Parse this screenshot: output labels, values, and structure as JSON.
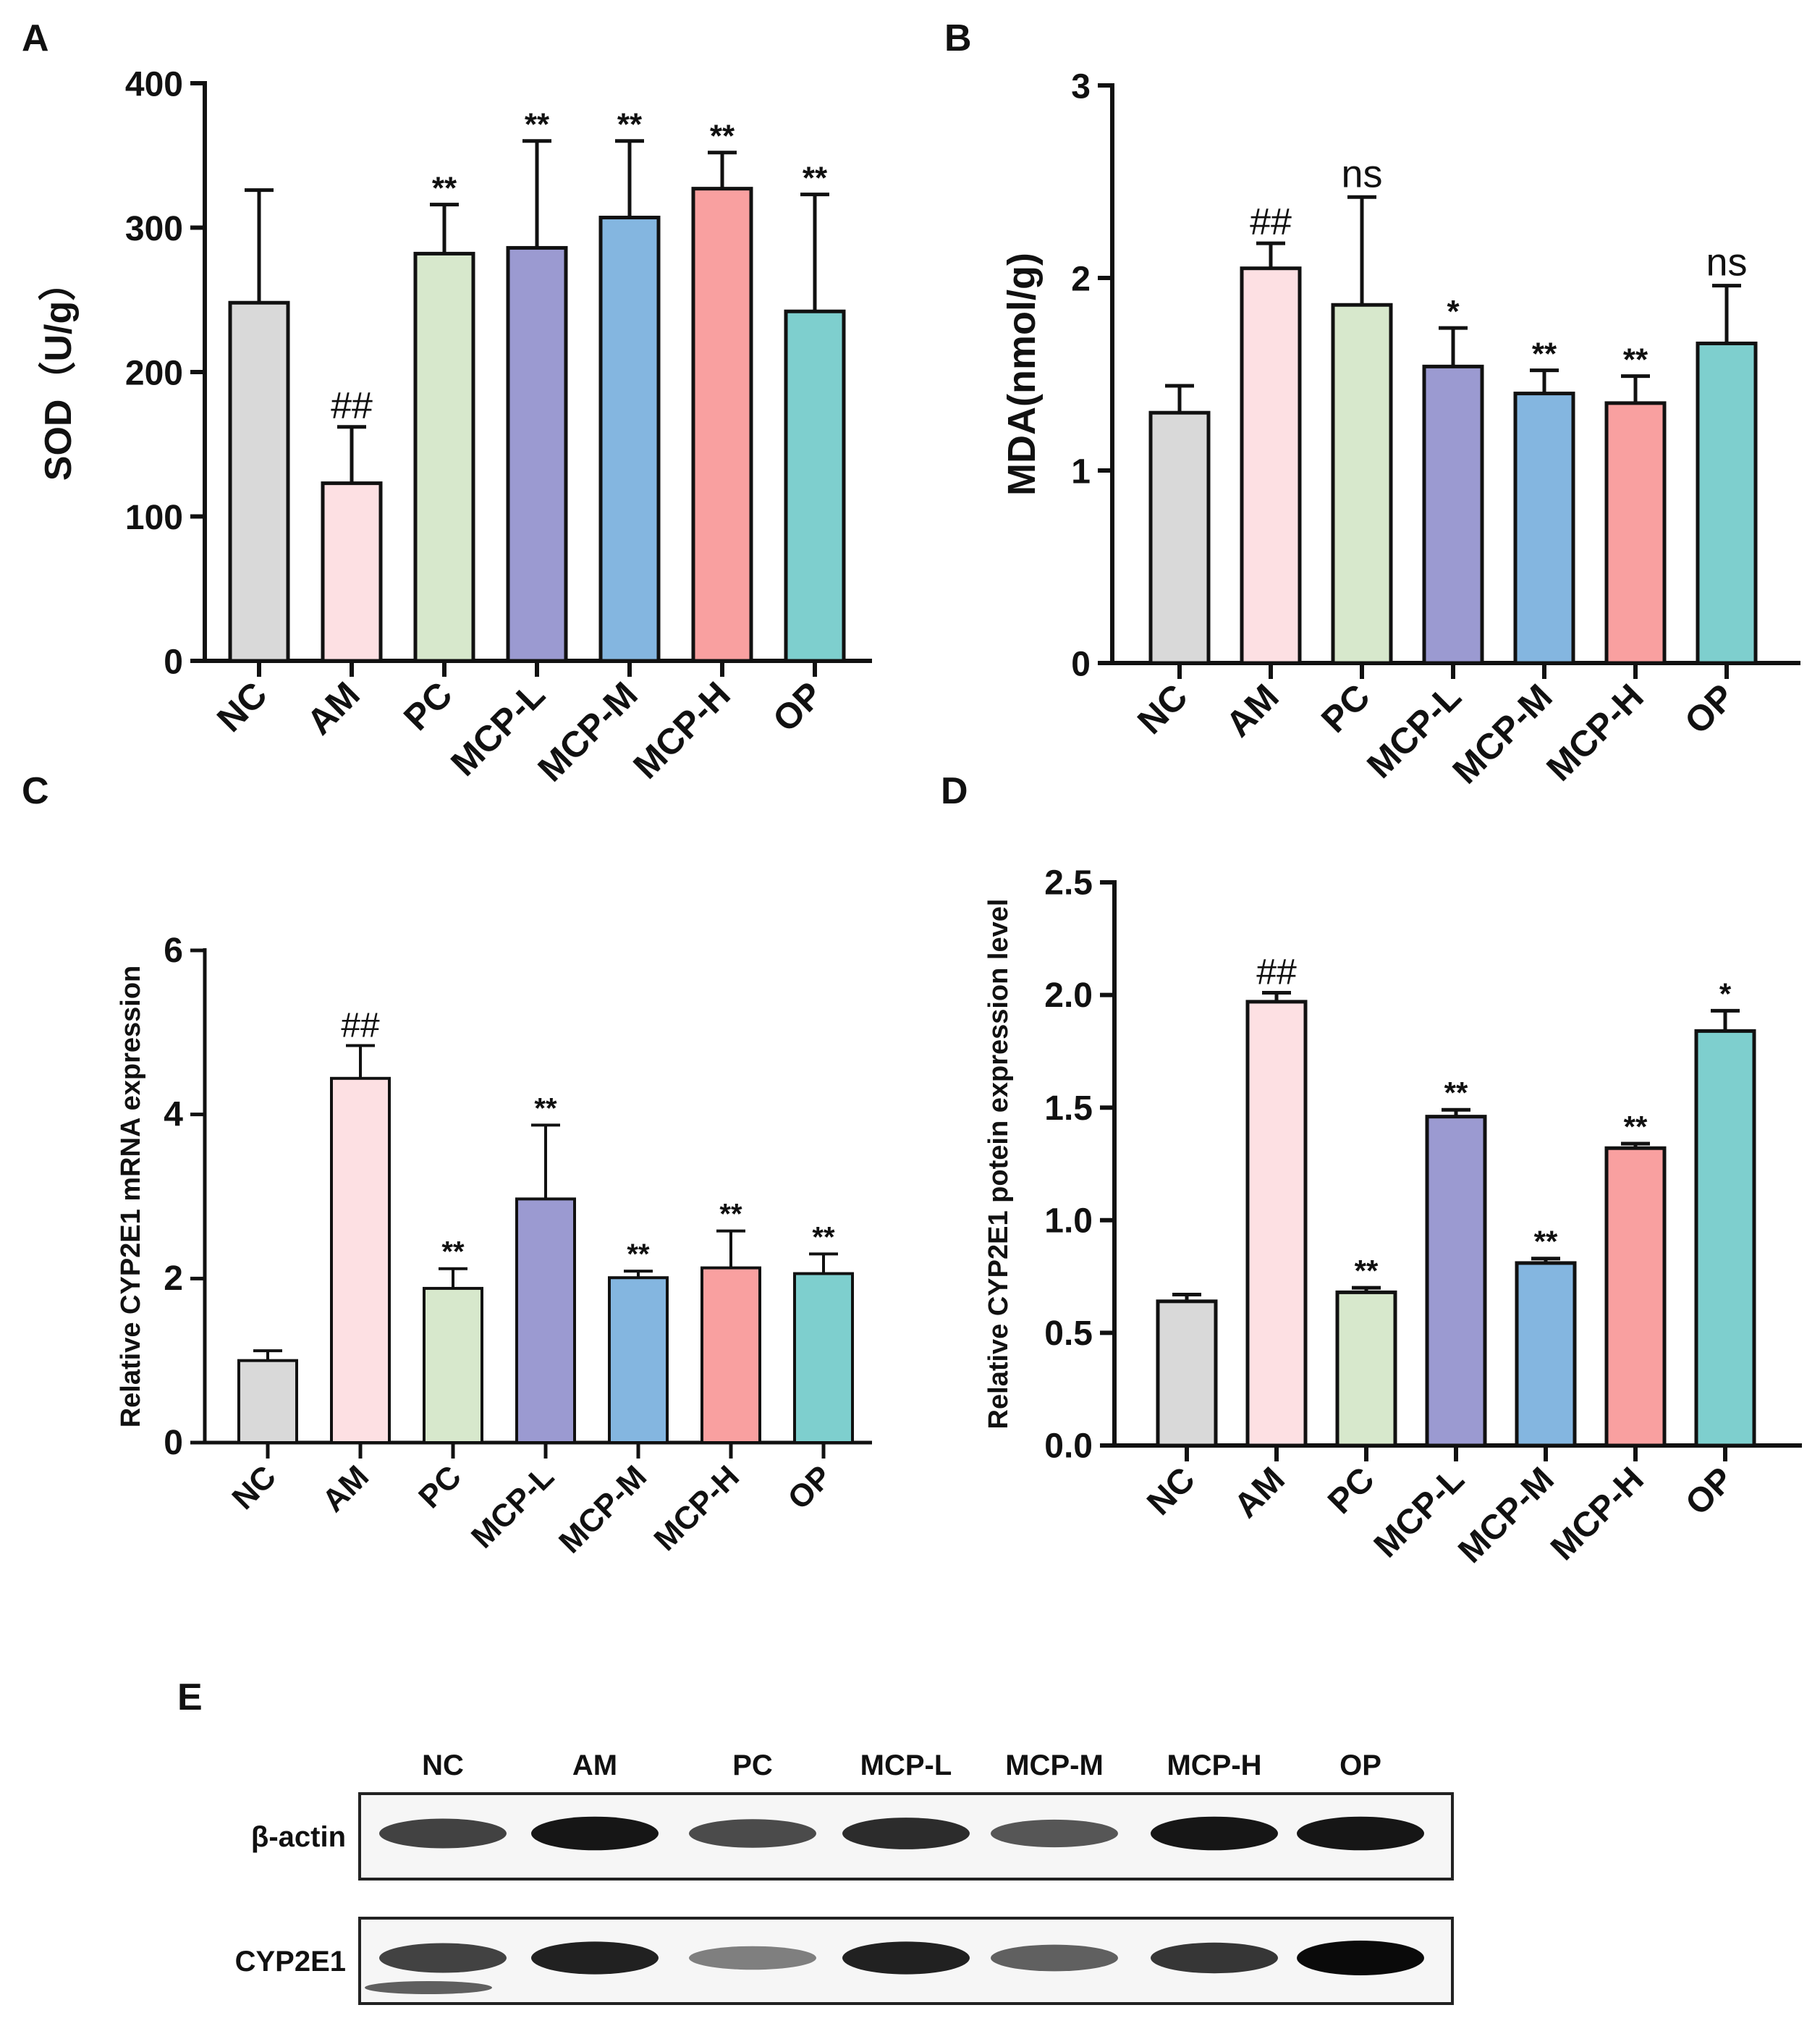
{
  "figure": {
    "categories": [
      "NC",
      "AM",
      "PC",
      "MCP-L",
      "MCP-M",
      "MCP-H",
      "OP"
    ],
    "colors": [
      "#d9d9d9",
      "#fde0e3",
      "#d7e8cc",
      "#9b9ad1",
      "#84b6e0",
      "#f9a0a0",
      "#7ecfce"
    ]
  },
  "chart_data": [
    {
      "panel": "A",
      "type": "bar",
      "categories": [
        "NC",
        "AM",
        "PC",
        "MCP-L",
        "MCP-M",
        "MCP-H",
        "OP"
      ],
      "values": [
        248,
        123,
        282,
        286,
        307,
        327,
        242
      ],
      "errors": [
        78,
        39,
        34,
        74,
        53,
        25,
        81
      ],
      "annotations": [
        "",
        "##",
        "**",
        "**",
        "**",
        "**",
        "**"
      ],
      "ylabel": "SOD（U/g）",
      "ylim": [
        0,
        400
      ],
      "yticks": [
        "0",
        "100",
        "200",
        "300",
        "400"
      ]
    },
    {
      "panel": "B",
      "type": "bar",
      "categories": [
        "NC",
        "AM",
        "PC",
        "MCP-L",
        "MCP-M",
        "MCP-H",
        "OP"
      ],
      "values": [
        1.3,
        2.05,
        1.86,
        1.54,
        1.4,
        1.35,
        1.66
      ],
      "errors": [
        0.14,
        0.13,
        0.56,
        0.2,
        0.12,
        0.14,
        0.3
      ],
      "annotations": [
        "",
        "##",
        "ns",
        "*",
        "**",
        "**",
        "ns"
      ],
      "ylabel": "MDA(nmol/g)",
      "ylim": [
        0,
        3
      ],
      "yticks": [
        "0",
        "1",
        "2",
        "3"
      ]
    },
    {
      "panel": "C",
      "type": "bar",
      "categories": [
        "NC",
        "AM",
        "PC",
        "MCP-L",
        "MCP-M",
        "MCP-H",
        "OP"
      ],
      "values": [
        1.0,
        4.44,
        1.88,
        2.97,
        2.01,
        2.13,
        2.06
      ],
      "errors": [
        0.12,
        0.4,
        0.24,
        0.9,
        0.08,
        0.45,
        0.24
      ],
      "annotations": [
        "",
        "##",
        "**",
        "**",
        "**",
        "**",
        "**"
      ],
      "ylabel": "Relative CYP2E1 mRNA expression",
      "ylim": [
        0,
        6
      ],
      "yticks": [
        "0",
        "2",
        "4",
        "6"
      ]
    },
    {
      "panel": "D",
      "type": "bar",
      "categories": [
        "NC",
        "AM",
        "PC",
        "MCP-L",
        "MCP-M",
        "MCP-H",
        "OP"
      ],
      "values": [
        0.64,
        1.97,
        0.68,
        1.46,
        0.81,
        1.32,
        1.84
      ],
      "errors": [
        0.03,
        0.04,
        0.02,
        0.03,
        0.02,
        0.02,
        0.09
      ],
      "annotations": [
        "",
        "##",
        "**",
        "**",
        "**",
        "**",
        "*"
      ],
      "ylabel": "Relative CYP2E1 potein expression level",
      "ylim": [
        0,
        2.5
      ],
      "yticks": [
        "0.0",
        "0.5",
        "1.0",
        "1.5",
        "2.0",
        "2.5"
      ]
    }
  ],
  "blot": {
    "panel": "E",
    "lanes": [
      "NC",
      "AM",
      "PC",
      "MCP-L",
      "MCP-M",
      "MCP-H",
      "OP"
    ],
    "rows": [
      {
        "label": "β-actin",
        "intensity": [
          0.75,
          0.95,
          0.7,
          0.85,
          0.65,
          0.95,
          0.95
        ]
      },
      {
        "label": "CYP2E1",
        "intensity": [
          0.75,
          0.9,
          0.45,
          0.9,
          0.6,
          0.8,
          1.0
        ]
      }
    ]
  }
}
